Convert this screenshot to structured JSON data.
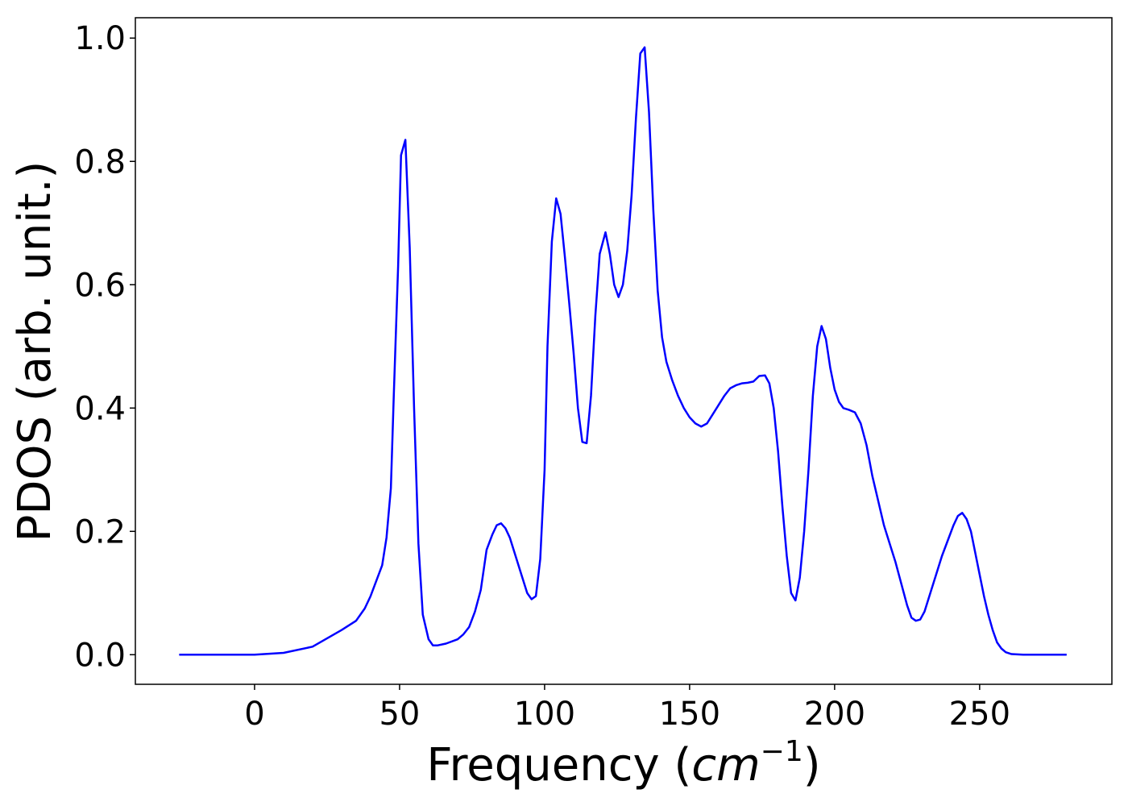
{
  "chart_data": {
    "type": "line",
    "xlabel": [
      "Frequency (",
      "cm",
      "−1",
      ")"
    ],
    "ylabel": "PDOS (arb. unit.)",
    "x": [
      -26,
      0,
      10,
      20,
      30,
      35,
      38,
      40,
      42,
      44,
      45.5,
      47,
      48,
      49.5,
      50.5,
      52,
      53.5,
      55,
      56.5,
      58,
      60,
      61.5,
      63,
      66,
      70,
      72,
      74,
      76,
      78,
      80,
      82,
      83.5,
      85,
      86.5,
      88,
      90,
      92,
      94,
      95.5,
      97,
      98.5,
      100,
      101,
      102.5,
      104,
      105.5,
      107,
      108.5,
      110,
      111.5,
      113,
      114.5,
      116,
      117.5,
      119,
      121,
      122.5,
      124,
      125.5,
      127,
      128.5,
      130,
      131.5,
      133,
      134.5,
      136,
      137.5,
      139,
      140.5,
      142,
      144,
      146,
      148,
      150,
      152,
      154,
      156,
      158,
      160,
      162,
      164,
      166,
      168,
      170,
      172,
      174,
      176,
      177.5,
      179,
      180.5,
      182,
      183.5,
      185,
      186.5,
      188,
      189.5,
      191,
      192.5,
      194,
      195.5,
      197,
      198.5,
      200,
      201.5,
      203,
      205,
      207,
      209,
      211,
      213,
      215,
      217,
      219,
      221,
      223,
      225,
      226.5,
      228,
      229.5,
      231,
      233,
      235,
      237,
      239,
      241,
      242.5,
      244,
      245.5,
      247,
      248.5,
      250,
      251.5,
      253,
      254.5,
      256,
      257.5,
      259,
      261,
      265,
      280
    ],
    "series": [
      {
        "name": "PDOS",
        "color": "#0000ff",
        "values": [
          0,
          0,
          0.003,
          0.013,
          0.04,
          0.055,
          0.075,
          0.095,
          0.12,
          0.145,
          0.19,
          0.27,
          0.42,
          0.63,
          0.81,
          0.835,
          0.66,
          0.4,
          0.18,
          0.065,
          0.025,
          0.015,
          0.015,
          0.018,
          0.025,
          0.033,
          0.045,
          0.07,
          0.105,
          0.17,
          0.195,
          0.21,
          0.213,
          0.205,
          0.19,
          0.16,
          0.13,
          0.1,
          0.09,
          0.095,
          0.155,
          0.3,
          0.5,
          0.67,
          0.74,
          0.715,
          0.645,
          0.57,
          0.49,
          0.4,
          0.345,
          0.343,
          0.42,
          0.55,
          0.65,
          0.685,
          0.65,
          0.6,
          0.58,
          0.6,
          0.655,
          0.745,
          0.87,
          0.975,
          0.985,
          0.88,
          0.72,
          0.59,
          0.515,
          0.475,
          0.445,
          0.42,
          0.4,
          0.385,
          0.375,
          0.37,
          0.375,
          0.39,
          0.405,
          0.42,
          0.432,
          0.437,
          0.44,
          0.441,
          0.443,
          0.452,
          0.453,
          0.44,
          0.4,
          0.33,
          0.24,
          0.16,
          0.1,
          0.088,
          0.125,
          0.2,
          0.3,
          0.42,
          0.5,
          0.533,
          0.512,
          0.465,
          0.43,
          0.41,
          0.4,
          0.397,
          0.393,
          0.375,
          0.34,
          0.29,
          0.25,
          0.21,
          0.18,
          0.15,
          0.115,
          0.08,
          0.06,
          0.055,
          0.057,
          0.07,
          0.1,
          0.13,
          0.16,
          0.185,
          0.21,
          0.225,
          0.23,
          0.22,
          0.2,
          0.165,
          0.13,
          0.095,
          0.065,
          0.04,
          0.02,
          0.01,
          0.004,
          0.001,
          0,
          0
        ]
      }
    ],
    "xlim": [
      -41.1,
      295.6
    ],
    "xticks": [
      0,
      50,
      100,
      150,
      200,
      250
    ],
    "ylim": [
      -0.048,
      1.033
    ],
    "yticks": [
      {
        "value": 0,
        "label": "0.0"
      },
      0.2,
      0.4,
      0.6,
      0.8,
      {
        "value": 1,
        "label": "1.0"
      }
    ]
  }
}
